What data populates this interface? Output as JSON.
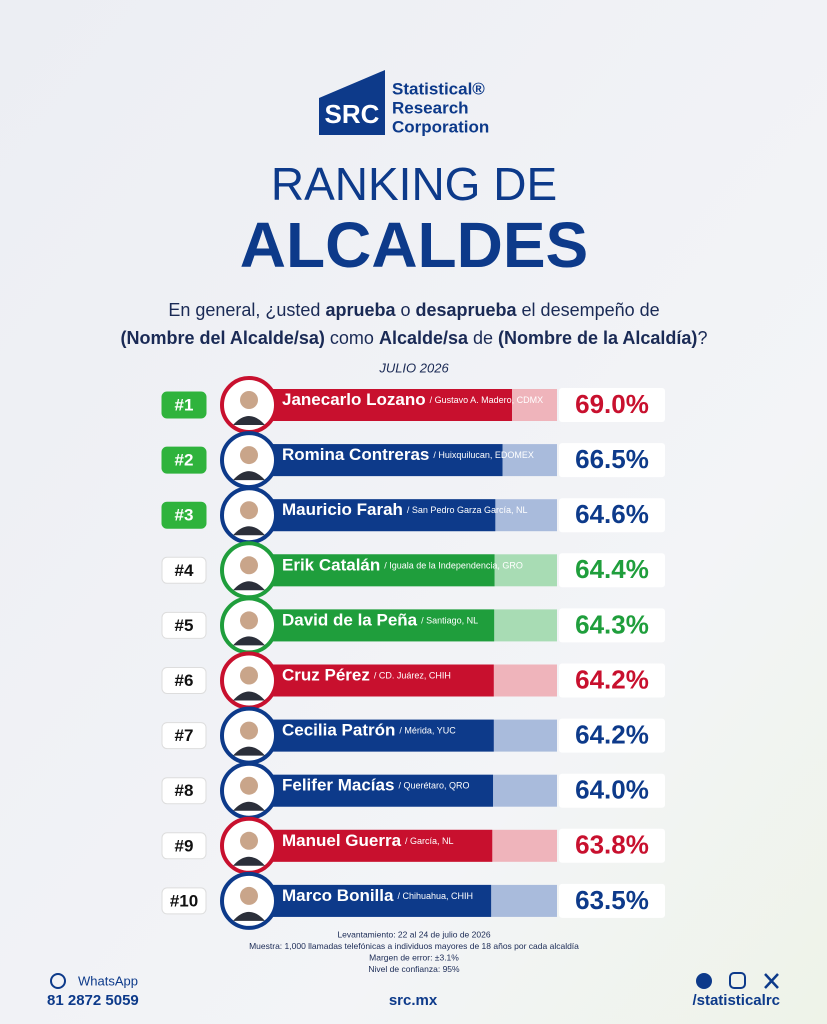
{
  "chart_data": {
    "type": "bar",
    "brand": {
      "logo": "SRC",
      "lines": [
        "Statistical®",
        "Research",
        "Corporation"
      ]
    },
    "title": "RANKING DE",
    "title_emphasis": "ALCALDES",
    "question": [
      [
        {
          "text": "En general, ¿usted ",
          "bold": false
        },
        {
          "text": "aprueba",
          "bold": true
        },
        {
          "text": " o ",
          "bold": false
        },
        {
          "text": "desaprueba",
          "bold": true
        },
        {
          "text": " el desempeño de",
          "bold": false
        }
      ],
      [
        {
          "text": "(Nombre del Alcalde/sa)",
          "bold": true
        },
        {
          "text": " como ",
          "bold": false
        },
        {
          "text": "Alcalde/sa",
          "bold": true
        },
        {
          "text": " de ",
          "bold": false
        },
        {
          "text": "(Nombre de la Alcaldía)",
          "bold": true
        },
        {
          "text": "?",
          "bold": false
        }
      ]
    ],
    "subtitle": "JULIO 2026",
    "ranks": [
      "#1",
      "#2",
      "#3",
      "#4",
      "#5",
      "#6",
      "#7",
      "#8",
      "#9",
      "#10"
    ],
    "categories": [
      "Janecarlo Lozano",
      "Romina Contreras",
      "Mauricio Farah",
      "Erik Catalán",
      "David de la Peña",
      "Cruz Pérez",
      "Cecilia Patrón",
      "Felifer Macías",
      "Manuel Guerra",
      "Marco Bonilla"
    ],
    "locations": [
      "/ Gustavo A. Madero, CDMX",
      "/ Huixquilucan, EDOMEX",
      "/ San Pedro Garza García, NL",
      "/ Iguala de la Independencia, GRO",
      "/ Santiago, NL",
      "/ CD. Juárez, CHIH",
      "/ Mérida, YUC",
      "/ Querétaro, QRO",
      "/ García, NL",
      "/ Chihuahua, CHIH"
    ],
    "values": [
      69.0,
      66.5,
      64.6,
      64.4,
      64.3,
      64.2,
      64.2,
      64.0,
      63.8,
      63.5
    ],
    "value_labels": [
      "69.0%",
      "66.5%",
      "64.6%",
      "64.4%",
      "64.3%",
      "64.2%",
      "64.2%",
      "64.0%",
      "63.8%",
      "63.5%"
    ],
    "colors": [
      "#c8102e",
      "#0d3a8a",
      "#0d3a8a",
      "#1f9e3c",
      "#1f9e3c",
      "#c8102e",
      "#0d3a8a",
      "#0d3a8a",
      "#c8102e",
      "#0d3a8a"
    ],
    "light_colors": [
      "#efb4bb",
      "#a9bbdc",
      "#a9bbdc",
      "#a8dcb4",
      "#a8dcb4",
      "#efb4bb",
      "#a9bbdc",
      "#a9bbdc",
      "#efb4bb",
      "#a9bbdc"
    ],
    "highlight_ranks": 3,
    "notes": [
      "Levantamiento: 22 al 24 de julio de 2026",
      "Muestra: 1,000 llamadas telefónicas a individuos mayores de 18 años por cada alcaldía",
      "Margen de error: ±3.1%",
      "Nivel de confianza: 95%"
    ],
    "contact": {
      "whatsapp_label": "WhatsApp",
      "phone": "81 2872 5059",
      "website": "src.mx",
      "social": "/statisticalrc"
    }
  }
}
